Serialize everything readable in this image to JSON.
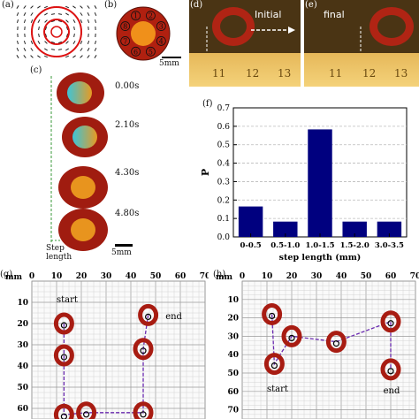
{
  "panels": {
    "a": "(a)",
    "b": "(b)",
    "c": "(c)",
    "d": "(d)",
    "e": "(e)",
    "f": "(f)",
    "g": "(g)",
    "h": "(h)"
  },
  "panel_b": {
    "segments": [
      "1",
      "2",
      "3",
      "4",
      "5",
      "6",
      "7",
      "8"
    ],
    "scale": "5mm"
  },
  "panel_c": {
    "times": [
      "0.00s",
      "2.10s",
      "4.30s",
      "4.80s"
    ],
    "step_label_1": "Step",
    "step_label_2": "length",
    "scale": "5mm"
  },
  "panel_d": {
    "label": "Initial",
    "ruler": [
      "11",
      "12",
      "13"
    ]
  },
  "panel_e": {
    "label": "final",
    "ruler": [
      "11",
      "12",
      "13"
    ]
  },
  "panel_g": {
    "unit": "mm",
    "x_ticks": [
      "0",
      "10",
      "20",
      "30",
      "40",
      "50",
      "60",
      "70"
    ],
    "y_ticks": [
      "10",
      "20",
      "30",
      "40",
      "50",
      "60"
    ],
    "start": "start",
    "end": "end"
  },
  "panel_h": {
    "unit": "mm",
    "x_ticks": [
      "0",
      "10",
      "20",
      "30",
      "40",
      "50",
      "60",
      "70"
    ],
    "y_ticks": [
      "10",
      "20",
      "30",
      "40",
      "50",
      "60",
      "70"
    ],
    "start": "start",
    "end": "end"
  },
  "chart_data": {
    "type": "bar",
    "categories": [
      "0-0.5",
      "0.5-1.0",
      "1.0-1.5",
      "1.5-2.0",
      "3.0-3.5"
    ],
    "values": [
      0.165,
      0.083,
      0.583,
      0.083,
      0.083
    ],
    "xlabel": "step length (mm)",
    "ylabel": "P",
    "ylim": [
      0,
      0.7
    ],
    "yticks": [
      "0.0",
      "0.1",
      "0.2",
      "0.3",
      "0.4",
      "0.5",
      "0.6",
      "0.7"
    ],
    "grid": true,
    "bar_color": "#00007f"
  }
}
